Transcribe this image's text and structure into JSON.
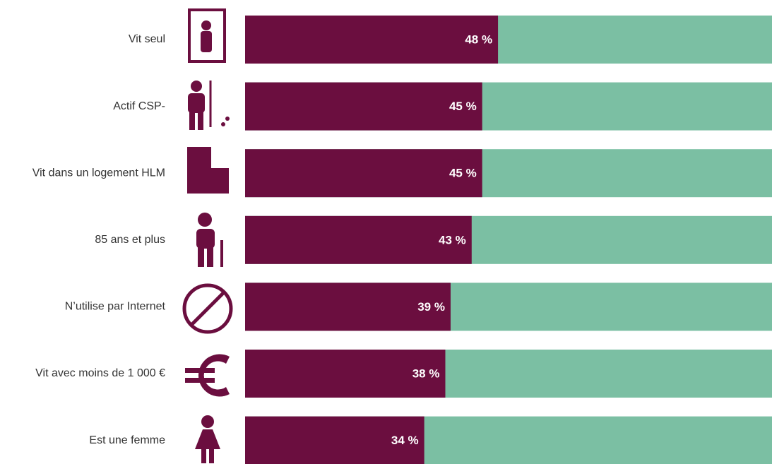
{
  "chart_data": {
    "type": "bar",
    "orientation": "horizontal",
    "categories": [
      "Vit seul",
      "Actif CSP-",
      "Vit dans un logement HLM",
      "85 ans et plus",
      "N’utilise par Internet",
      "Vit avec moins de 1 000 €",
      "Est une femme"
    ],
    "values": [
      48,
      45,
      45,
      43,
      39,
      38,
      34
    ],
    "value_labels": [
      "48 %",
      "45 %",
      "45 %",
      "43 %",
      "39 %",
      "38 %",
      "34 %"
    ],
    "color": "#6b0e3f",
    "remainder_color": "#7bbfa3",
    "xlim": [
      0,
      100
    ]
  }
}
